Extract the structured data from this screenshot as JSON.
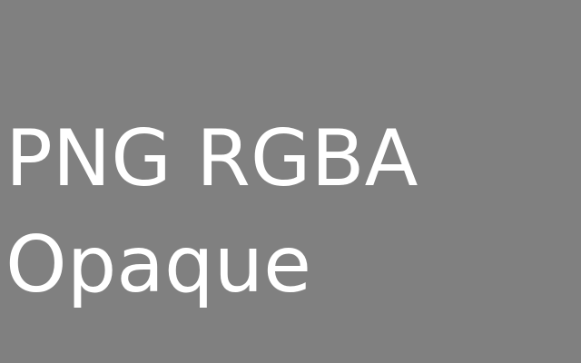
{
  "image": {
    "background_color": "#808080",
    "text_color": "#ffffff",
    "lines": [
      "PNG RGBA",
      "Opaque"
    ]
  }
}
